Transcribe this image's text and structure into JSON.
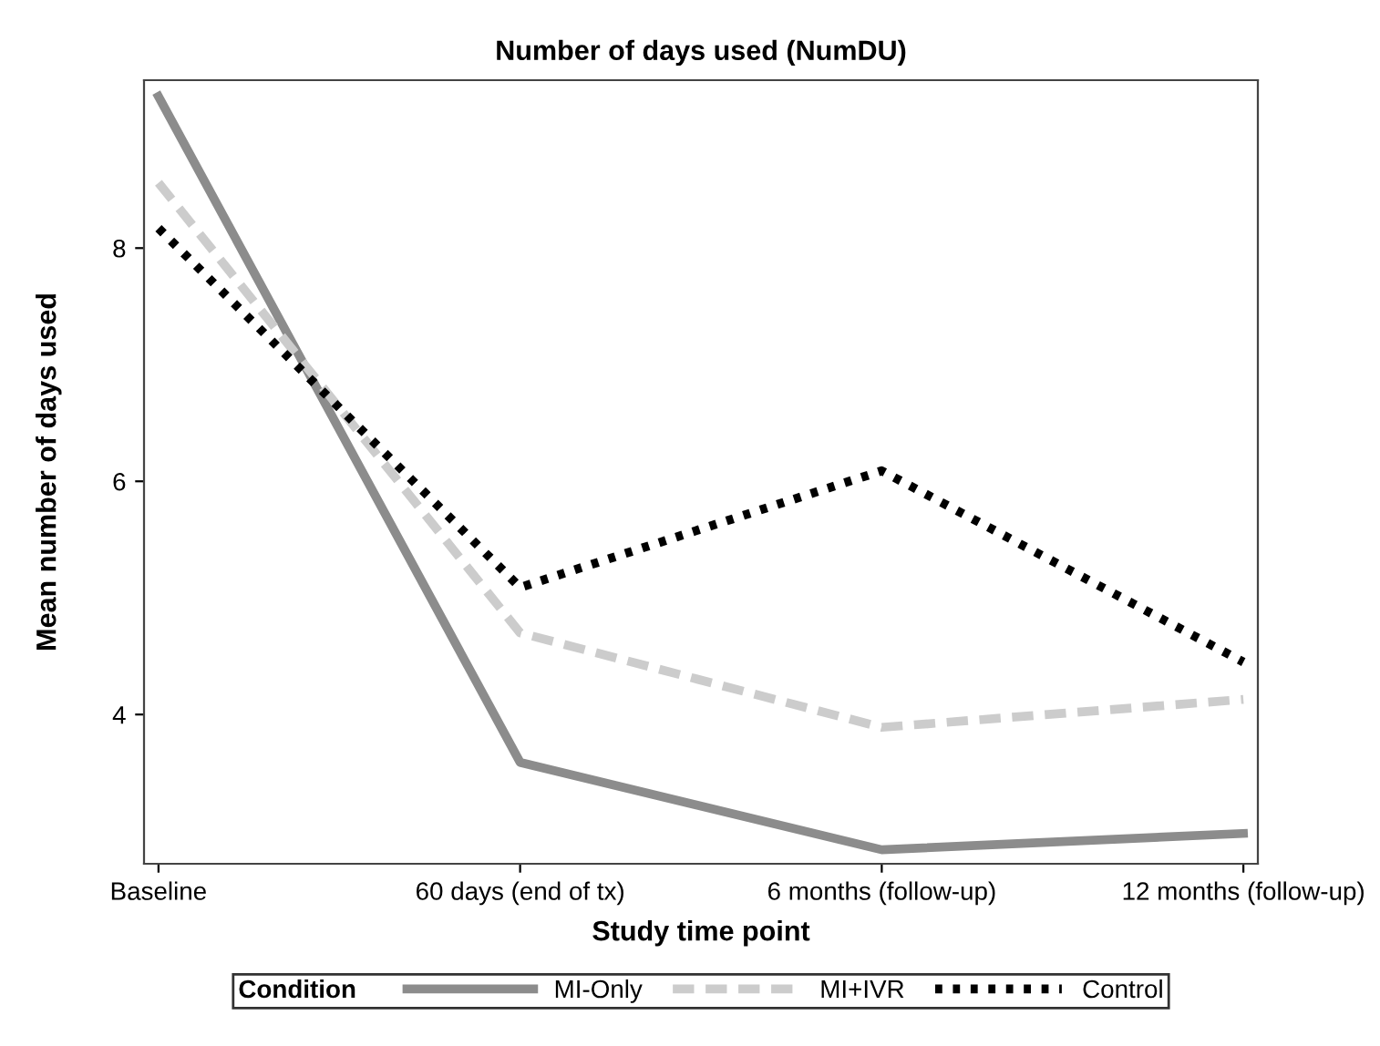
{
  "chart_data": {
    "type": "line",
    "title": "Number of days used (NumDU)",
    "xlabel": "Study time point",
    "ylabel": "Mean number of days used",
    "legend_title": "Condition",
    "categories": [
      "Baseline",
      "60 days (end of tx)",
      "6 months (follow-up)",
      "12 months (follow-up)"
    ],
    "series": [
      {
        "name": "MI-Only",
        "color": "#8c8c8c",
        "line_style": "solid",
        "values": [
          9.3,
          3.59,
          2.84,
          2.98
        ]
      },
      {
        "name": "MI+IVR",
        "color": "#cccccc",
        "line_style": "dashed",
        "values": [
          8.56,
          4.7,
          3.89,
          4.13
        ]
      },
      {
        "name": "Control",
        "color": "#000000",
        "line_style": "dotted",
        "values": [
          8.17,
          5.09,
          6.09,
          4.45
        ]
      }
    ],
    "ylim": [
      2.72,
      9.44
    ],
    "yticks": [
      4,
      6,
      8
    ],
    "grid": false,
    "legend": "bottom",
    "marker": "none"
  }
}
